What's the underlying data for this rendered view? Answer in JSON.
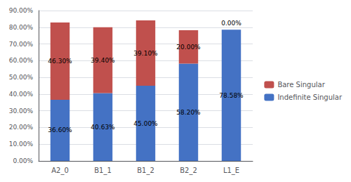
{
  "chart_data": {
    "type": "bar",
    "stacked": true,
    "categories": [
      "A2_0",
      "B1_1",
      "B1_2",
      "B2_2",
      "L1_E"
    ],
    "series": [
      {
        "name": "Indefinite Singular",
        "color": "#4472C4",
        "values": [
          36.6,
          40.63,
          45.0,
          58.2,
          78.58
        ],
        "value_labels": [
          "36.60%",
          "40.63%",
          "45.00%",
          "58.20%",
          "78.58%"
        ]
      },
      {
        "name": "Bare Singular",
        "color": "#C0504D",
        "values": [
          46.3,
          39.4,
          39.1,
          20.0,
          0.0
        ],
        "value_labels": [
          "46.30%",
          "39.40%",
          "39.10%",
          "20.00%",
          "0.00%"
        ]
      }
    ],
    "ylim": [
      0,
      90
    ],
    "yticks": [
      {
        "value": 0,
        "label": "0.00%"
      },
      {
        "value": 10,
        "label": "10.00%"
      },
      {
        "value": 20,
        "label": "20.00%"
      },
      {
        "value": 30,
        "label": "30.00%"
      },
      {
        "value": 40,
        "label": "40.00%"
      },
      {
        "value": 50,
        "label": "50.00%"
      },
      {
        "value": 60,
        "label": "60.00%"
      },
      {
        "value": 70,
        "label": "70.00%"
      },
      {
        "value": 80,
        "label": "80.00%"
      },
      {
        "value": 90,
        "label": "90.00%"
      }
    ],
    "grid": true,
    "legend": "right",
    "data_labels": true
  }
}
